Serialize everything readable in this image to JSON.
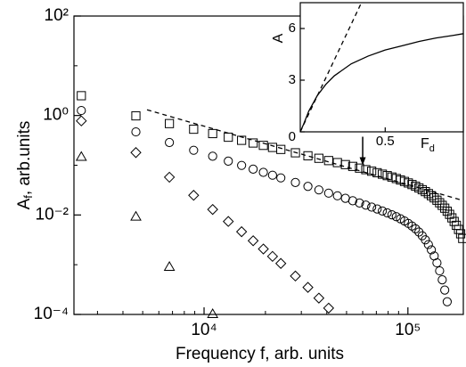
{
  "chart_data": [
    {
      "type": "scatter",
      "xlabel": "Frequency f, arb. units",
      "ylabel": "A",
      "ylabel_sub": "f",
      "ylabel_rest": ", arb.units",
      "log_x": true,
      "log_y": true,
      "xlim": [
        2300,
        187000
      ],
      "ylim": [
        0.0001,
        100
      ],
      "xticks": [
        {
          "value": 10000,
          "label": "10⁴"
        },
        {
          "value": 100000,
          "label": "10⁵"
        }
      ],
      "yticks": [
        {
          "value": 0.0001,
          "label": "10⁻⁴"
        },
        {
          "value": 0.01,
          "label": "10⁻²"
        },
        {
          "value": 1,
          "label": "10⁰"
        },
        {
          "value": 100,
          "label": "10²"
        }
      ],
      "x": [
        2500,
        4630,
        6760,
        8890,
        11020,
        13150,
        15280,
        17410,
        19540,
        21670,
        23800,
        28060,
        32320,
        36580,
        40840,
        45100,
        49360,
        53620,
        57880,
        62140,
        66400,
        70660,
        74920,
        79180,
        83440,
        87700,
        91960,
        96220,
        100480,
        104740,
        109000,
        113260,
        117520,
        121780,
        126040,
        130300,
        134560,
        138820,
        143080,
        147340,
        151600,
        155860,
        160120,
        164380,
        168640,
        172900,
        177160,
        181420,
        185680
      ],
      "series": [
        {
          "marker": "square",
          "color": "#000000",
          "values": [
            2.5,
            0.984,
            0.688,
            0.53,
            0.433,
            0.366,
            0.317,
            0.28,
            0.251,
            0.228,
            0.208,
            0.178,
            0.155,
            0.138,
            0.124,
            0.113,
            0.103,
            0.0948,
            0.0875,
            0.0815,
            0.0759,
            0.0707,
            0.0661,
            0.0618,
            0.0579,
            0.0541,
            0.0505,
            0.0472,
            0.044,
            0.0409,
            0.0379,
            0.035,
            0.0322,
            0.0295,
            0.0269,
            0.0244,
            0.0221,
            0.0198,
            0.0176,
            0.0156,
            0.0137,
            0.0119,
            0.0103,
            0.00875,
            0.0074,
            0.00619,
            0.00512,
            0.00418,
            0.00337
          ]
        },
        {
          "marker": "circle",
          "color": "#000000",
          "values": [
            1.26,
            0.468,
            0.286,
            0.2,
            0.152,
            0.121,
            0.0993,
            0.0836,
            0.072,
            0.063,
            0.0557,
            0.045,
            0.0375,
            0.0319,
            0.0275,
            0.0243,
            0.0216,
            0.0193,
            0.0174,
            0.0158,
            0.0144,
            0.0132,
            0.012,
            0.011,
            0.0101,
            0.00923,
            0.00838,
            0.00757,
            0.00676,
            0.006,
            0.00526,
            0.00453,
            0.00382,
            0.00316,
            0.00254,
            0.00199,
            0.0015,
            0.00109,
            0.000753,
            0.000497,
            0.000309,
            0.00018,
            null,
            null,
            null,
            null,
            null,
            null,
            null
          ]
        },
        {
          "marker": "diamond",
          "color": "#000000",
          "values": [
            0.78,
            0.18,
            0.0575,
            0.0249,
            0.0129,
            0.00741,
            0.00461,
            0.00303,
            0.00207,
            0.00147,
            0.00106,
            0.000593,
            0.00035,
            0.000213,
            0.000134,
            null,
            null,
            null,
            null,
            null,
            null,
            null,
            null,
            null,
            null,
            null,
            null,
            null,
            null,
            null,
            null,
            null,
            null,
            null,
            null,
            null,
            null,
            null,
            null,
            null,
            null,
            null,
            null,
            null,
            null,
            null,
            null,
            null,
            null
          ]
        },
        {
          "marker": "triangle",
          "color": "#000000",
          "values": [
            0.148,
            0.0093,
            0.00091,
            null,
            0.000102,
            null,
            null,
            null,
            null,
            null,
            null,
            null,
            null,
            null,
            null,
            null,
            null,
            null,
            null,
            null,
            null,
            null,
            null,
            null,
            null,
            null,
            null,
            null,
            null,
            null,
            null,
            null,
            null,
            null,
            null,
            null,
            null,
            null,
            null,
            null,
            null,
            null,
            null,
            null,
            null,
            null,
            null,
            null,
            null
          ]
        }
      ],
      "fit": {
        "x": [
          5250,
          187000
        ],
        "values": [
          1.3,
          0.0195
        ],
        "dash": true,
        "color": "#000000"
      },
      "arrow": {
        "x": 60000,
        "y": 0.1
      }
    },
    {
      "type": "line",
      "xlabel": "F",
      "xlabel_sub": "d",
      "ylabel": "A",
      "xlim": [
        0,
        0.96
      ],
      "ylim": [
        0,
        7.5
      ],
      "xticks": [
        0.5
      ],
      "yticks": [
        0,
        3,
        6
      ],
      "series": [
        {
          "x": [
            0,
            0.02,
            0.05,
            0.1,
            0.15,
            0.2,
            0.3,
            0.4,
            0.5,
            0.6,
            0.7,
            0.8,
            0.9,
            0.96
          ],
          "values": [
            0,
            0.45,
            1.2,
            2.1,
            2.75,
            3.25,
            3.95,
            4.4,
            4.75,
            5.0,
            5.25,
            5.45,
            5.6,
            5.7
          ],
          "dash": false,
          "color": "#000000"
        },
        {
          "x": [
            0,
            0.36
          ],
          "values": [
            0,
            7.5
          ],
          "dash": true,
          "color": "#000000"
        }
      ]
    }
  ]
}
